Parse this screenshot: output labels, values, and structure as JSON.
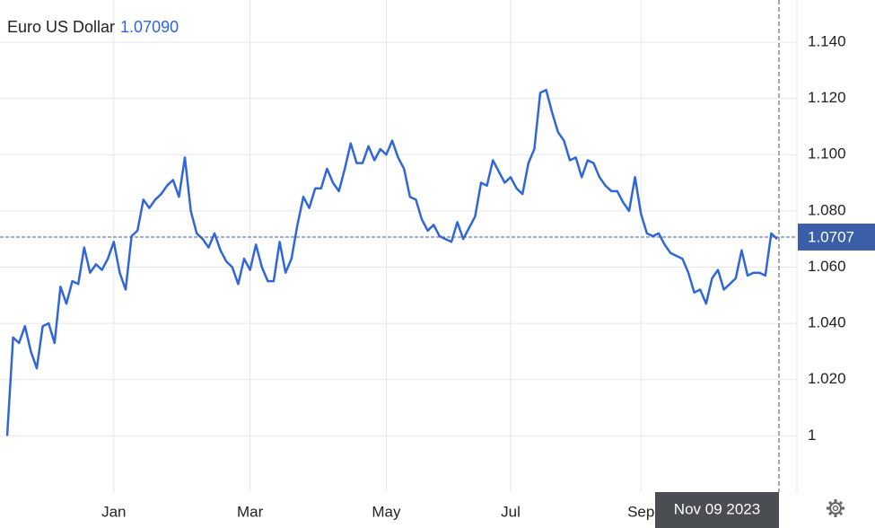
{
  "chart_data": {
    "type": "line",
    "title": "Euro US Dollar",
    "current_value": "1.07090",
    "crosshair_date": "Nov 09 2023",
    "last_price": 1.0707,
    "color": "#2f66d8",
    "grid": true,
    "categories": [
      null,
      null,
      null,
      null,
      null,
      null,
      null,
      null,
      null,
      null,
      null,
      null,
      null,
      null,
      null,
      null,
      null,
      null,
      "Jan",
      null,
      null,
      null,
      null,
      null,
      null,
      null,
      null,
      null,
      null,
      null,
      null,
      null,
      null,
      null,
      null,
      null,
      null,
      null,
      null,
      null,
      null,
      "Mar",
      null,
      null,
      null,
      null,
      null,
      null,
      null,
      null,
      null,
      null,
      null,
      null,
      null,
      null,
      null,
      null,
      null,
      null,
      null,
      null,
      null,
      null,
      "May",
      null,
      null,
      null,
      null,
      null,
      null,
      null,
      null,
      null,
      null,
      null,
      null,
      null,
      null,
      null,
      null,
      null,
      null,
      null,
      null,
      "Jul",
      null,
      null,
      null,
      null,
      null,
      null,
      null,
      null,
      null,
      null,
      null,
      null,
      null,
      null,
      null,
      null,
      null,
      null,
      null,
      null,
      null,
      "Sep",
      null,
      null,
      null,
      null,
      null,
      null,
      null,
      null,
      null,
      null,
      null,
      null,
      null,
      null,
      null,
      null,
      null,
      null,
      null,
      null,
      null,
      null,
      null
    ],
    "values": [
      1.0,
      1.035,
      1.033,
      1.039,
      1.03,
      1.024,
      1.039,
      1.04,
      1.033,
      1.053,
      1.047,
      1.055,
      1.054,
      1.067,
      1.058,
      1.061,
      1.059,
      1.063,
      1.069,
      1.058,
      1.052,
      1.071,
      1.073,
      1.084,
      1.081,
      1.084,
      1.086,
      1.089,
      1.091,
      1.085,
      1.099,
      1.08,
      1.072,
      1.07,
      1.067,
      1.072,
      1.066,
      1.062,
      1.06,
      1.054,
      1.063,
      1.059,
      1.068,
      1.06,
      1.055,
      1.055,
      1.069,
      1.058,
      1.063,
      1.075,
      1.085,
      1.081,
      1.088,
      1.088,
      1.095,
      1.09,
      1.087,
      1.095,
      1.104,
      1.097,
      1.097,
      1.103,
      1.098,
      1.102,
      1.1,
      1.105,
      1.099,
      1.095,
      1.085,
      1.084,
      1.077,
      1.073,
      1.075,
      1.071,
      1.07,
      1.069,
      1.076,
      1.07,
      1.074,
      1.078,
      1.09,
      1.089,
      1.098,
      1.094,
      1.09,
      1.092,
      1.088,
      1.086,
      1.097,
      1.102,
      1.122,
      1.123,
      1.115,
      1.108,
      1.105,
      1.098,
      1.099,
      1.092,
      1.098,
      1.097,
      1.092,
      1.089,
      1.087,
      1.087,
      1.083,
      1.08,
      1.092,
      1.079,
      1.072,
      1.071,
      1.072,
      1.068,
      1.065,
      1.064,
      1.063,
      1.058,
      1.051,
      1.052,
      1.047,
      1.056,
      1.059,
      1.052,
      1.054,
      1.056,
      1.066,
      1.057,
      1.058,
      1.058,
      1.057,
      1.072,
      1.07
    ],
    "ylim": [
      0.98,
      1.155
    ],
    "yticks": [
      1,
      {
        "value": 1.02,
        "label": "1.020"
      },
      {
        "value": 1.04,
        "label": "1.040"
      },
      {
        "value": 1.06,
        "label": "1.060"
      },
      {
        "value": 1.08,
        "label": "1.080"
      },
      {
        "value": 1.1,
        "label": "1.100"
      },
      {
        "value": 1.12,
        "label": "1.120"
      },
      {
        "value": 1.14,
        "label": "1.140"
      }
    ]
  }
}
